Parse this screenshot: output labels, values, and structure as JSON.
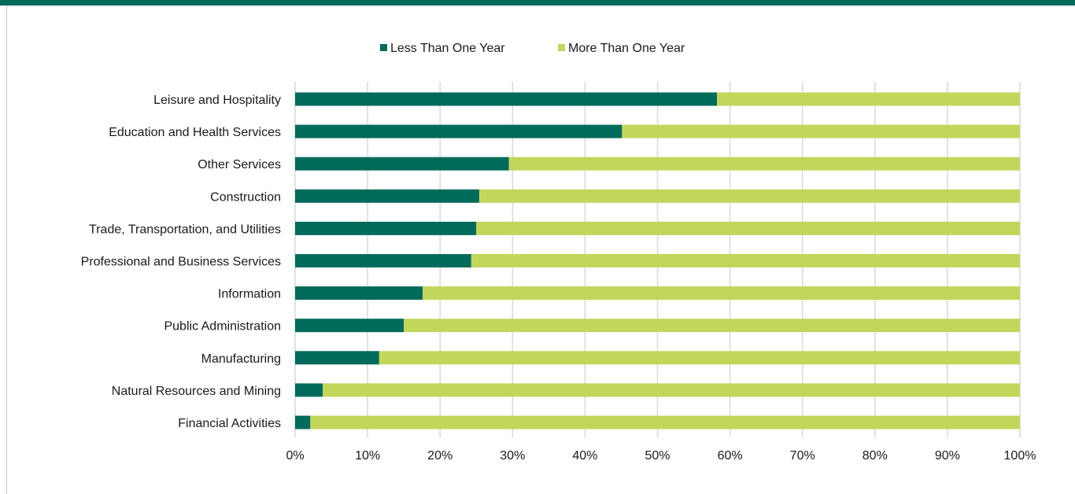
{
  "colors": {
    "less": "#006a5b",
    "more": "#c2d65c",
    "grid": "#d9d9d9",
    "top_bar": "#006a5b"
  },
  "chart_data": {
    "type": "bar",
    "orientation": "horizontal",
    "stacked": true,
    "title": "",
    "xlabel": "",
    "ylabel": "",
    "xlim": [
      0,
      100
    ],
    "x_ticks": [
      "0%",
      "10%",
      "20%",
      "30%",
      "40%",
      "50%",
      "60%",
      "70%",
      "80%",
      "90%",
      "100%"
    ],
    "grid": "vertical",
    "legend_position": "top",
    "categories": [
      "Leisure and Hospitality",
      "Education and Health Services",
      "Other Services",
      "Construction",
      "Trade, Transportation, and Utilities",
      "Professional and Business Services",
      "Information",
      "Public Administration",
      "Manufacturing",
      "Natural Resources and Mining",
      "Financial Activities"
    ],
    "series": [
      {
        "name": "Less Than One Year",
        "values": [
          58.2,
          45.1,
          29.5,
          25.4,
          25.0,
          24.3,
          17.6,
          15.0,
          11.6,
          3.8,
          2.1
        ]
      },
      {
        "name": "More Than One Year",
        "values": [
          41.8,
          54.9,
          70.5,
          74.6,
          75.0,
          75.7,
          82.4,
          85.0,
          88.4,
          96.2,
          97.9
        ]
      }
    ]
  }
}
